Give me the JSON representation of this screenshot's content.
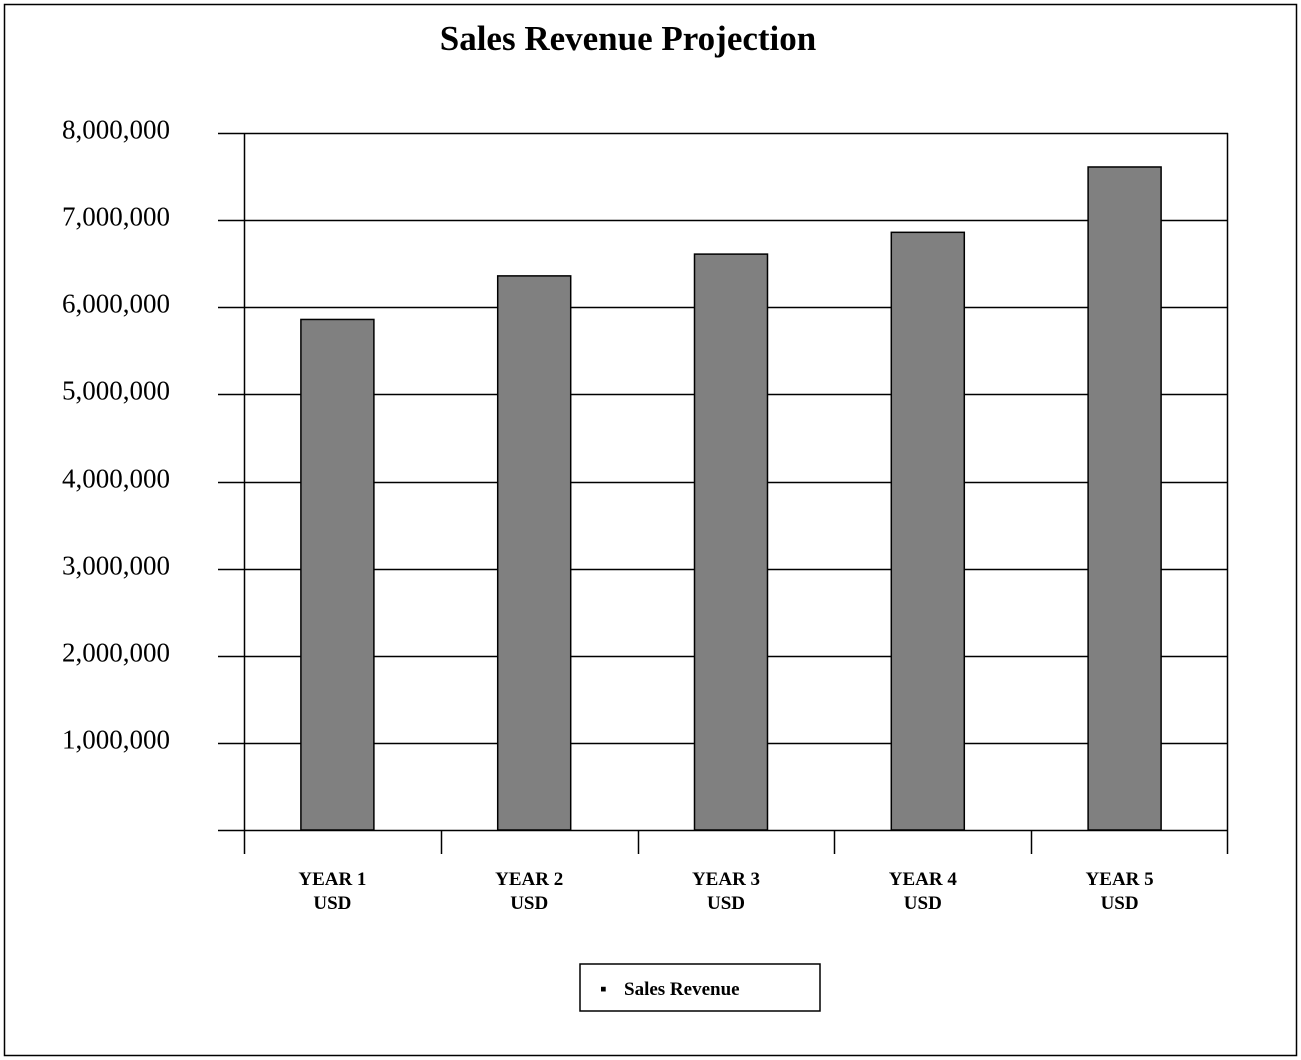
{
  "chart_data": {
    "type": "bar",
    "title": "Sales Revenue Projection",
    "categories": [
      [
        "YEAR 1",
        "USD"
      ],
      [
        "YEAR 2",
        "USD"
      ],
      [
        "YEAR 3",
        "USD"
      ],
      [
        "YEAR 4",
        "USD"
      ],
      [
        "YEAR  5",
        "USD"
      ]
    ],
    "series": [
      {
        "name": "Sales  Revenue",
        "values": [
          5860000,
          6360000,
          6610000,
          6860000,
          7610000
        ],
        "color": "#808080"
      }
    ],
    "ylim": [
      0,
      8000000
    ],
    "yticks": [
      {
        "value": 8000000,
        "label": "8,000,000"
      },
      {
        "value": 7000000,
        "label": "7,000,000"
      },
      {
        "value": 6000000,
        "label": "6,000,000"
      },
      {
        "value": 5000000,
        "label": "5,000,000"
      },
      {
        "value": 4000000,
        "label": "4,000,000"
      },
      {
        "value": 3000000,
        "label": "3,000,000"
      },
      {
        "value": 2000000,
        "label": "2,000,000"
      },
      {
        "value": 1000000,
        "label": "1,000,000"
      }
    ],
    "grid": true,
    "legend_position": "bottom-center",
    "legend_marker": "▪"
  }
}
